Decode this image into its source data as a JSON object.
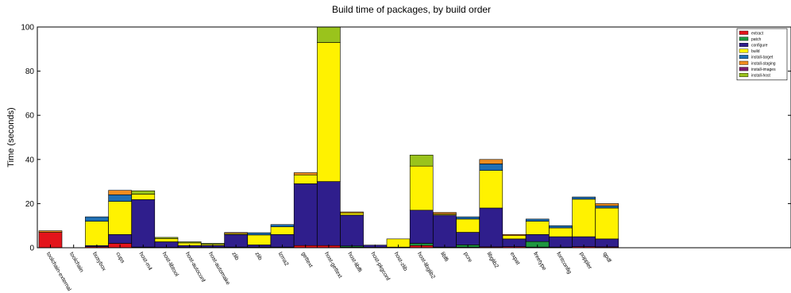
{
  "chart_data": {
    "type": "bar",
    "stacked": true,
    "title": "Build time of packages, by build order",
    "xlabel": "",
    "ylabel": "Time (seconds)",
    "ylim": [
      0,
      100
    ],
    "yticks": [
      "0",
      "20",
      "40",
      "60",
      "80",
      "100"
    ],
    "grid": false,
    "legend_position": "top-right",
    "categories": [
      "toolchain-external",
      "toolchain",
      "busybox",
      "cups",
      "host-m4",
      "host-libtool",
      "host-autoconf",
      "host-automake",
      "zlib",
      "zlib",
      "lzma2",
      "gettext",
      "host-gettext",
      "host-libffi",
      "host-pkgconf",
      "host-zlib",
      "host-libglib2",
      "libffi",
      "pcre",
      "libglib2",
      "expat",
      "freetype",
      "fontconfig",
      "poppler",
      "qpdf"
    ],
    "series": [
      {
        "name": "extract",
        "color": "#e3141b",
        "values": [
          7,
          0,
          0.5,
          2,
          0.3,
          0.2,
          0.2,
          0.2,
          0.3,
          0.3,
          0.3,
          1,
          1,
          0.3,
          0.2,
          0.3,
          1,
          0.3,
          0.3,
          0.4,
          0.5,
          0.3,
          0.3,
          0.5,
          0.4
        ]
      },
      {
        "name": "patch",
        "color": "#1e9640",
        "values": [
          0,
          0,
          0,
          0,
          0,
          0,
          0,
          0,
          0,
          0,
          0,
          0,
          0,
          0.5,
          0,
          0,
          1,
          0,
          1,
          0,
          0,
          2.5,
          0,
          0,
          0
        ]
      },
      {
        "name": "configure",
        "color": "#2f1e8c",
        "values": [
          0,
          0,
          0.5,
          4,
          21.5,
          2.5,
          0.8,
          0.8,
          5.7,
          1,
          5.7,
          28,
          29,
          14,
          1,
          0,
          15,
          14.5,
          5.7,
          17.6,
          3.5,
          3.2,
          4.7,
          4.5,
          3.6
        ]
      },
      {
        "name": "build",
        "color": "#fff200",
        "values": [
          0,
          0,
          11,
          15,
          2.5,
          1.5,
          1.2,
          0.5,
          0.5,
          4.5,
          3.5,
          4,
          63,
          1,
          0,
          3.7,
          20,
          0.5,
          6,
          17,
          1.5,
          6,
          4,
          17,
          14
        ]
      },
      {
        "name": "install-target",
        "color": "#1f6fb4",
        "values": [
          0,
          0,
          2,
          3,
          0,
          0,
          0,
          0,
          0,
          1,
          1,
          0,
          0,
          0,
          0,
          0,
          0,
          0,
          1,
          3,
          0,
          1,
          1,
          1,
          1
        ]
      },
      {
        "name": "install-staging",
        "color": "#f08c1e",
        "values": [
          0.7,
          0,
          0,
          2,
          0,
          0,
          0,
          0,
          0.4,
          0,
          0,
          1,
          0,
          0.4,
          0,
          0,
          0,
          0.7,
          0,
          2,
          0.5,
          0,
          0,
          0,
          1
        ]
      },
      {
        "name": "install-images",
        "color": "#7b1c6c",
        "values": [
          0,
          0,
          0,
          0,
          0,
          0,
          0,
          0,
          0,
          0,
          0,
          0,
          0,
          0,
          0,
          0,
          0,
          0,
          0,
          0,
          0,
          0,
          0,
          0,
          0
        ]
      },
      {
        "name": "install-host",
        "color": "#9ac31c",
        "values": [
          0,
          0,
          0,
          0,
          1.5,
          0.5,
          0.5,
          0.5,
          0,
          0,
          0,
          0,
          7,
          0,
          0,
          0,
          5,
          0,
          0,
          0,
          0,
          0,
          0,
          0,
          0
        ]
      }
    ]
  }
}
